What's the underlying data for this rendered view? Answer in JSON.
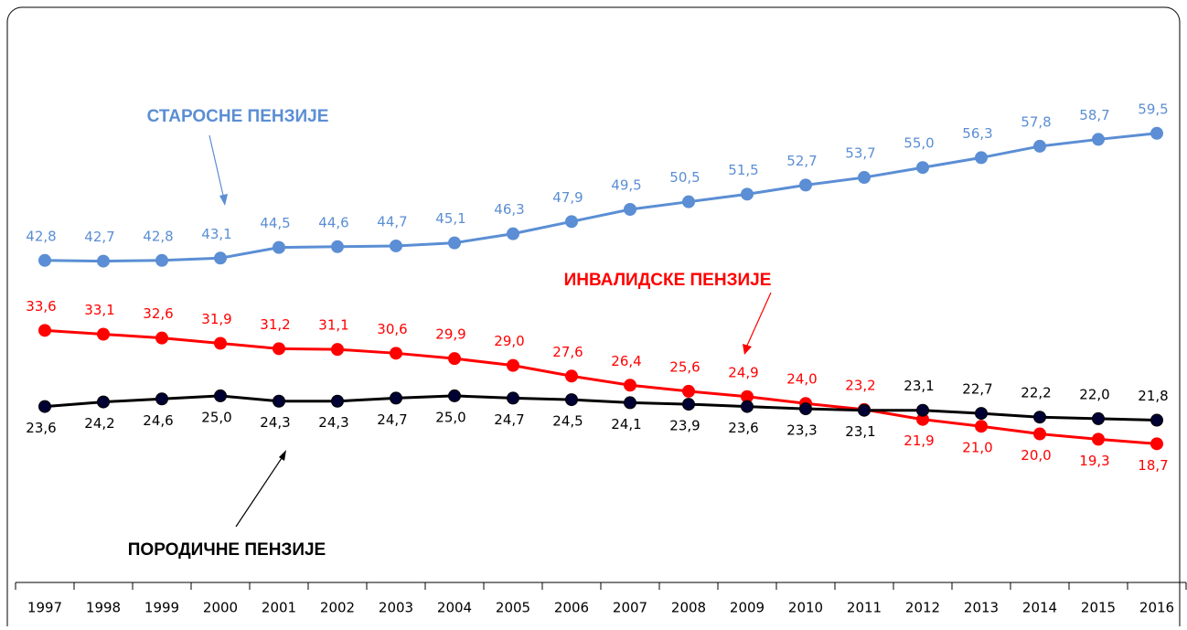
{
  "chart_data": {
    "type": "line",
    "categories": [
      "1997",
      "1998",
      "1999",
      "2000",
      "2001",
      "2002",
      "2003",
      "2004",
      "2005",
      "2006",
      "2007",
      "2008",
      "2009",
      "2010",
      "2011",
      "2012",
      "2013",
      "2014",
      "2015",
      "2016"
    ],
    "ylim": [
      0,
      65
    ],
    "series": [
      {
        "name": "СТАРОСНЕ   ПЕНЗИЈЕ",
        "color": "#5b8ed4",
        "marker_color": "#5b8ed4",
        "values": [
          42.8,
          42.7,
          42.8,
          43.1,
          44.5,
          44.6,
          44.7,
          45.1,
          46.3,
          47.9,
          49.5,
          50.5,
          51.5,
          52.7,
          53.7,
          55.0,
          56.3,
          57.8,
          58.7,
          59.5
        ],
        "value_labels": [
          "42,8",
          "42,7",
          "42,8",
          "43,1",
          "44,5",
          "44,6",
          "44,7",
          "45,1",
          "46,3",
          "47,9",
          "49,5",
          "50,5",
          "51,5",
          "52,7",
          "53,7",
          "55,0",
          "56,3",
          "57,8",
          "58,7",
          "59,5"
        ]
      },
      {
        "name": "ИНВАЛИДСКЕ   ПЕНЗИЈЕ",
        "color": "#ff0000",
        "marker_color": "#ff0000",
        "values": [
          33.6,
          33.1,
          32.6,
          31.9,
          31.2,
          31.1,
          30.6,
          29.9,
          29.0,
          27.6,
          26.4,
          25.6,
          24.9,
          24.0,
          23.2,
          21.9,
          21.0,
          20.0,
          19.3,
          18.7
        ],
        "value_labels": [
          "33,6",
          "33,1",
          "32,6",
          "31,9",
          "31,2",
          "31,1",
          "30,6",
          "29,9",
          "29,0",
          "27,6",
          "26,4",
          "25,6",
          "24,9",
          "24,0",
          "23,2",
          "21,9",
          "21,0",
          "20,0",
          "19,3",
          "18,7"
        ]
      },
      {
        "name": "ПОРОДИЧНЕ   ПЕНЗИЈЕ",
        "color": "#000000",
        "marker_color": "#000033",
        "values": [
          23.6,
          24.2,
          24.6,
          25.0,
          24.3,
          24.3,
          24.7,
          25.0,
          24.7,
          24.5,
          24.1,
          23.9,
          23.6,
          23.3,
          23.1,
          23.1,
          22.7,
          22.2,
          22.0,
          21.8
        ],
        "value_labels": [
          "23,6",
          "24,2",
          "24,6",
          "25,0",
          "24,3",
          "24,3",
          "24,7",
          "25,0",
          "24,7",
          "24,5",
          "24,1",
          "23,9",
          "23,6",
          "23,3",
          "23,1",
          "23,1",
          "22,7",
          "22,2",
          "22,0",
          "21,8"
        ]
      }
    ]
  }
}
